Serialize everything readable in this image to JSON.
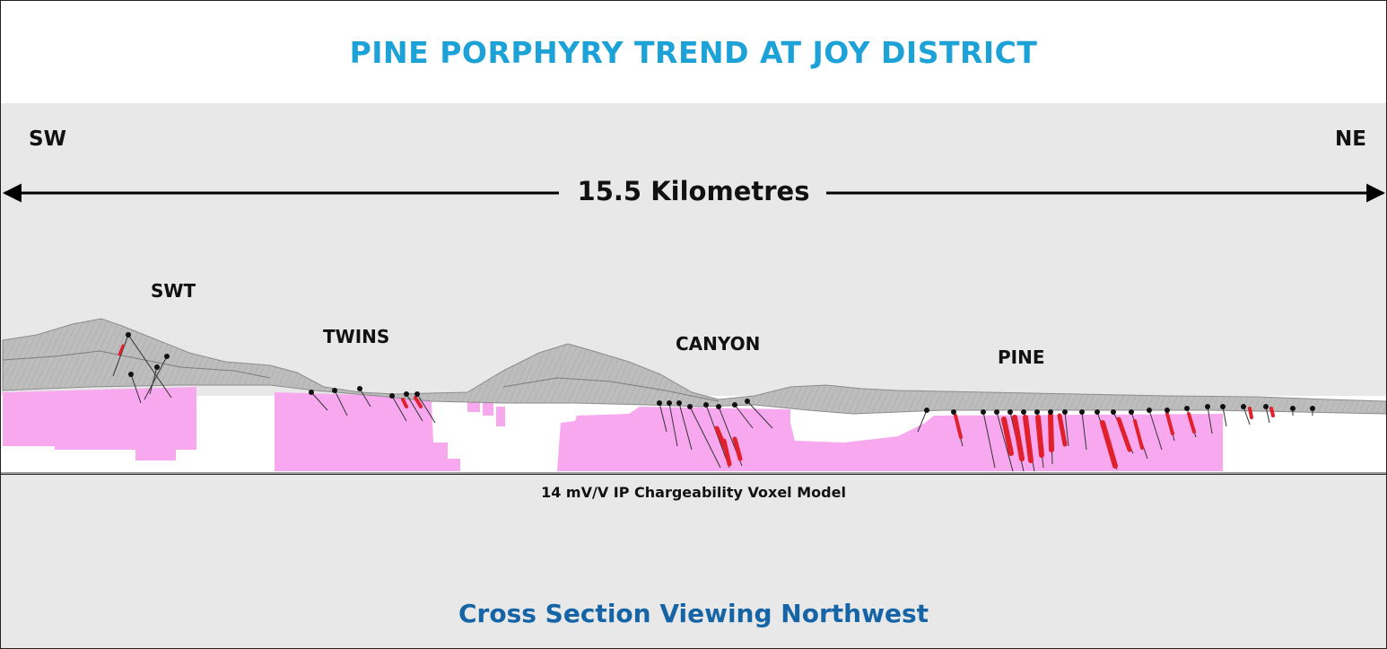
{
  "title": "PINE PORPHYRY TREND AT JOY DISTRICT",
  "directions": {
    "left": "SW",
    "right": "NE"
  },
  "distance_label": "15.5 Kilometres",
  "targets": [
    "SWT",
    "TWINS",
    "CANYON",
    "PINE"
  ],
  "model_caption": "14 mV/V IP Chargeability Voxel Model",
  "subtitle": "Cross Section Viewing Northwest",
  "colors": {
    "title": "#1da2d8",
    "subtitle": "#1565a6",
    "chargeability_voxels": "#f7a8ee",
    "drill_intercepts": "#e0202a",
    "terrain": "#b9b9b9"
  }
}
